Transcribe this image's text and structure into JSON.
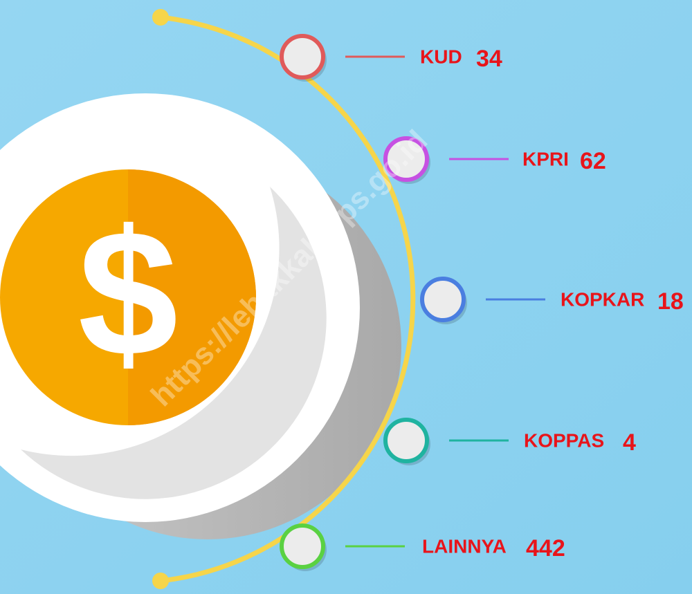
{
  "watermark": "https://lebakkab.bps.go.id",
  "items": [
    {
      "label": "KUD",
      "value": 34,
      "color": "#e05a5a"
    },
    {
      "label": "KPRI",
      "value": 62,
      "color": "#c651e2"
    },
    {
      "label": "KOPKAR",
      "value": 18,
      "color": "#4a7ee0"
    },
    {
      "label": "KOPPAS",
      "value": 4,
      "color": "#1fb3a0"
    },
    {
      "label": "LAINNYA",
      "value": 442,
      "color": "#5ad142"
    }
  ]
}
